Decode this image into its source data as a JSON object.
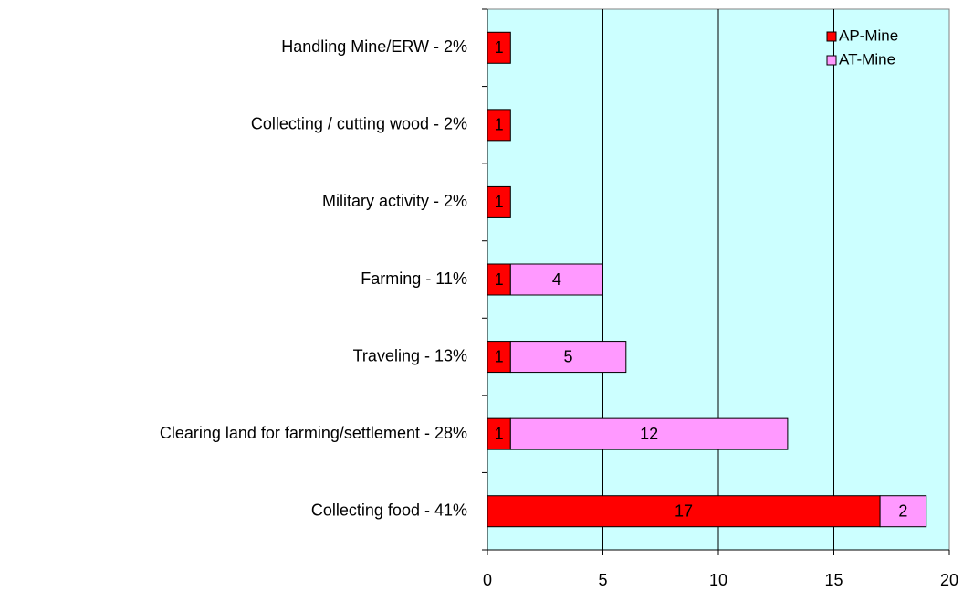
{
  "chart_data": {
    "type": "stacked-barh",
    "categories": [
      "Handling Mine/ERW - 2%",
      "Collecting / cutting wood - 2%",
      "Military activity - 2%",
      "Farming - 11%",
      "Traveling - 13%",
      "Clearing land for farming/settlement - 28%",
      "Collecting food - 41%"
    ],
    "series": [
      {
        "name": "AP-Mine",
        "color": "#ff0000",
        "values": [
          1,
          1,
          1,
          1,
          1,
          1,
          17
        ]
      },
      {
        "name": "AT-Mine",
        "color": "#ff99ff",
        "values": [
          null,
          null,
          null,
          4,
          5,
          12,
          2
        ]
      }
    ],
    "xlim": [
      0,
      20
    ],
    "xticks": [
      0,
      5,
      10,
      15,
      20
    ],
    "grid": true,
    "legend": "top-right",
    "background": "#ccffff"
  }
}
